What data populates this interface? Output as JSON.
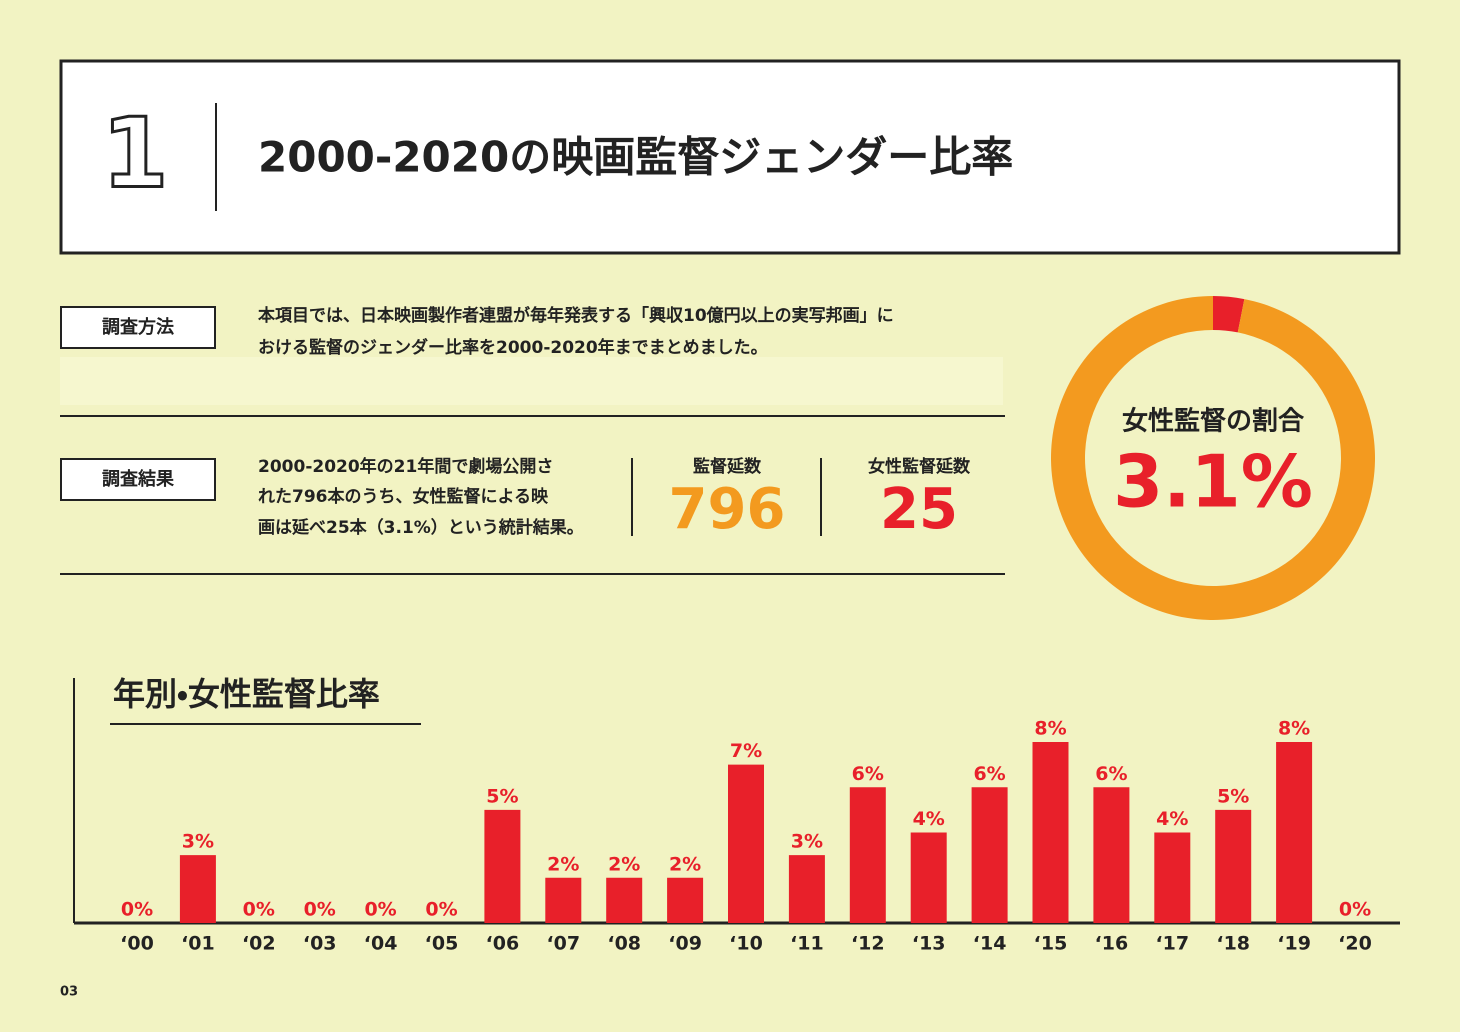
{
  "header": {
    "number": "1",
    "title": "2000-2020の映画監督ジェンダー比率"
  },
  "method": {
    "label": "調査方法",
    "lines": [
      "本項目では、日本映画製作者連盟が毎年発表する「興収10億円以上の実写邦画」に",
      "おける監督のジェンダー比率を2000-2020年までまとめました。"
    ]
  },
  "result": {
    "label": "調査結果",
    "lines": [
      "2000-2020年の21年間で劇場公開さ",
      "れた796本のうち、女性監督による映",
      "画は延べ25本（3.1%）という統計結果。"
    ],
    "stats": [
      {
        "label": "監督延数",
        "value": 796,
        "color": "#f39a1f"
      },
      {
        "label": "女性監督延数",
        "value": 25,
        "color": "#e8202a"
      }
    ]
  },
  "chart_data": [
    {
      "type": "pie",
      "title": "女性監督の割合",
      "values": [
        3.1,
        96.9
      ],
      "value_labels": [
        "3.1%",
        null
      ],
      "colors": [
        "#e8202a",
        "#f39a1f"
      ]
    },
    {
      "type": "bar",
      "title": "年別・女性監督比率",
      "categories": [
        "‘00",
        "‘01",
        "‘02",
        "‘03",
        "‘04",
        "‘05",
        "‘06",
        "‘07",
        "‘08",
        "‘09",
        "‘10",
        "‘11",
        "‘12",
        "‘13",
        "‘14",
        "‘15",
        "‘16",
        "‘17",
        "‘18",
        "‘19",
        "‘20"
      ],
      "values": [
        0,
        3,
        0,
        0,
        0,
        0,
        5,
        2,
        2,
        2,
        7,
        3,
        6,
        4,
        6,
        8,
        6,
        4,
        5,
        8,
        0
      ],
      "value_labels": [
        "0%",
        "3%",
        "0%",
        "0%",
        "0%",
        "0%",
        "5%",
        "2%",
        "2%",
        "2%",
        "7%",
        "3%",
        "6%",
        "4%",
        "6%",
        "8%",
        "6%",
        "4%",
        "5%",
        "8%",
        "0%"
      ],
      "color": "#e8202a",
      "ylim": [
        0,
        8
      ]
    }
  ],
  "footer": {
    "page": "03"
  }
}
